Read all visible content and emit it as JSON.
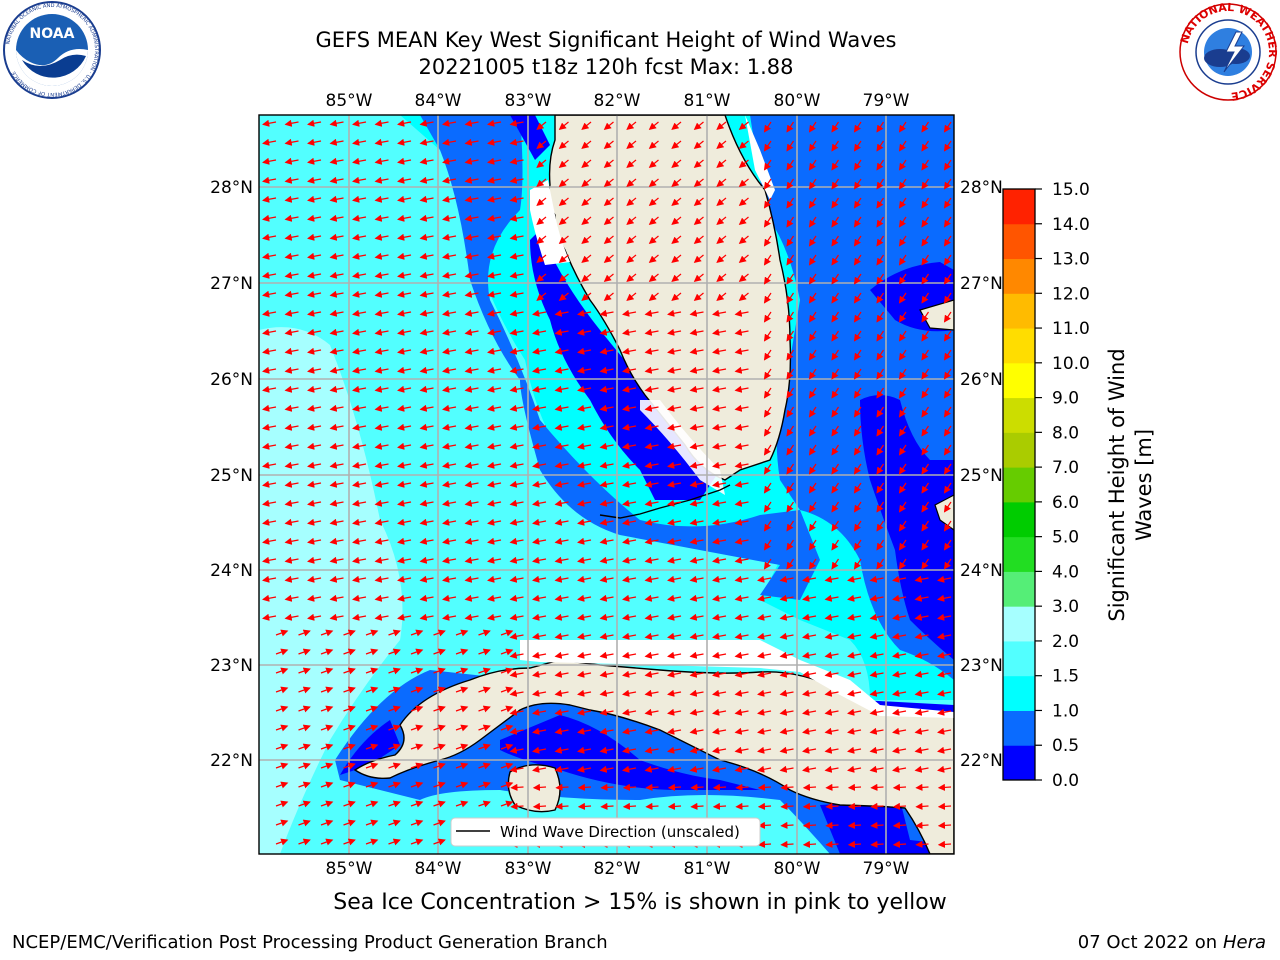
{
  "header": {
    "title_line1": "GEFS MEAN Key West Significant Height of Wind Waves",
    "title_line2": "20221005 t18z 120h fcst   Max: 1.88"
  },
  "logos": {
    "left": {
      "name": "NOAA",
      "ring_text": "NATIONAL OCEANIC AND ATMOSPHERIC ADMINISTRATION · U.S. DEPARTMENT OF COMMERCE"
    },
    "right": {
      "name": "NATIONAL WEATHER SERVICE"
    }
  },
  "map": {
    "lon_labels": [
      "85°W",
      "84°W",
      "83°W",
      "82°W",
      "81°W",
      "80°W",
      "79°W"
    ],
    "lat_labels": [
      "28°N",
      "27°N",
      "26°N",
      "25°N",
      "24°N",
      "23°N",
      "22°N"
    ],
    "legend_label": "Wind Wave Direction (unscaled)",
    "land_color": "#efecdc",
    "arrow_color": "#ff0000"
  },
  "colorbar": {
    "title_line1": "Significant Height of Wind",
    "title_line2": "Waves [m]",
    "tick_labels": [
      "0.0",
      "0.5",
      "1.0",
      "1.5",
      "2.0",
      "3.0",
      "4.0",
      "5.0",
      "6.0",
      "7.0",
      "8.0",
      "9.0",
      "10.0",
      "11.0",
      "12.0",
      "13.0",
      "14.0",
      "15.0"
    ],
    "colors": [
      "#0000ff",
      "#0a6bff",
      "#00ffff",
      "#52ffff",
      "#a6ffff",
      "#55ee77",
      "#22dd22",
      "#00cc00",
      "#66cc00",
      "#aacc00",
      "#ccdd00",
      "#ffff00",
      "#ffdd00",
      "#ffbb00",
      "#ff8800",
      "#ff5500",
      "#ff2200"
    ]
  },
  "subtitle": "Sea Ice Concentration > 15% is shown in pink to yellow",
  "footer": {
    "left": "NCEP/EMC/Verification Post Processing Product Generation Branch",
    "right_prefix": "07 Oct 2022 on",
    "right_host": "Hera"
  }
}
